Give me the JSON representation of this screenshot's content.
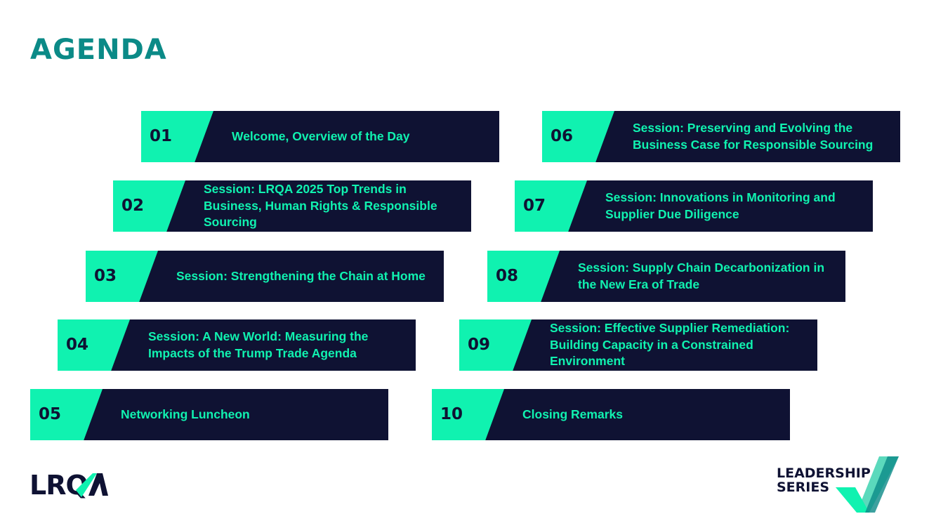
{
  "title": "AGENDA",
  "colors": {
    "accent": "#10F2B0",
    "navy": "#0F1233",
    "title": "#0B8A87"
  },
  "items": [
    {
      "num": "01",
      "label": "Welcome, Overview of the Day"
    },
    {
      "num": "02",
      "label": "Session: LRQA 2025 Top Trends in Business, Human Rights & Responsible Sourcing"
    },
    {
      "num": "03",
      "label": "Session: Strengthening the Chain at Home"
    },
    {
      "num": "04",
      "label": "Session: A New World: Measuring the Impacts of the Trump Trade Agenda"
    },
    {
      "num": "05",
      "label": "Networking Luncheon"
    },
    {
      "num": "06",
      "label": "Session: Preserving and Evolving the Business Case for Responsible Sourcing"
    },
    {
      "num": "07",
      "label": "Session: Innovations in Monitoring and Supplier Due Diligence"
    },
    {
      "num": "08",
      "label": "Session: Supply Chain Decarbonization in the New Era of Trade"
    },
    {
      "num": "09",
      "label": "Session: Effective Supplier Remediation: Building Capacity in a Constrained Environment"
    },
    {
      "num": "10",
      "label": "Closing Remarks"
    }
  ],
  "logos": {
    "lrqa": "LRQA",
    "series_line1": "LEADERSHIP",
    "series_line2": "SERIES"
  }
}
